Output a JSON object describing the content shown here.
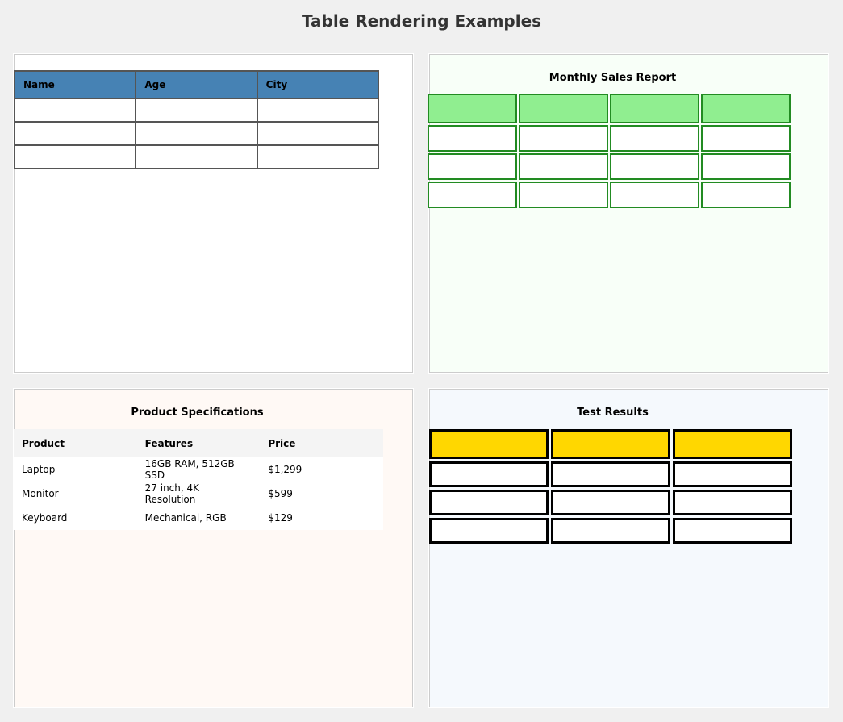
{
  "page_title": "Table Rendering Examples",
  "panels": {
    "basic": {
      "headers": [
        "Name",
        "Age",
        "City"
      ],
      "header_color": "#4682b4",
      "row_count": 3
    },
    "sales": {
      "title": "Monthly Sales Report",
      "header_color": "#90ee90",
      "border_color": "#228b22"
    },
    "products": {
      "title": "Product Specifications",
      "headers": [
        "Product",
        "Features",
        "Price"
      ],
      "rows": [
        [
          "Laptop",
          "16GB RAM, 512GB SSD",
          "$1,299"
        ],
        [
          "Monitor",
          "27 inch, 4K Resolution",
          "$599"
        ],
        [
          "Keyboard",
          "Mechanical, RGB",
          "$129"
        ]
      ]
    },
    "tests": {
      "title": "Test Results",
      "header_color": "#ffd700",
      "border_color": "#000000"
    }
  }
}
